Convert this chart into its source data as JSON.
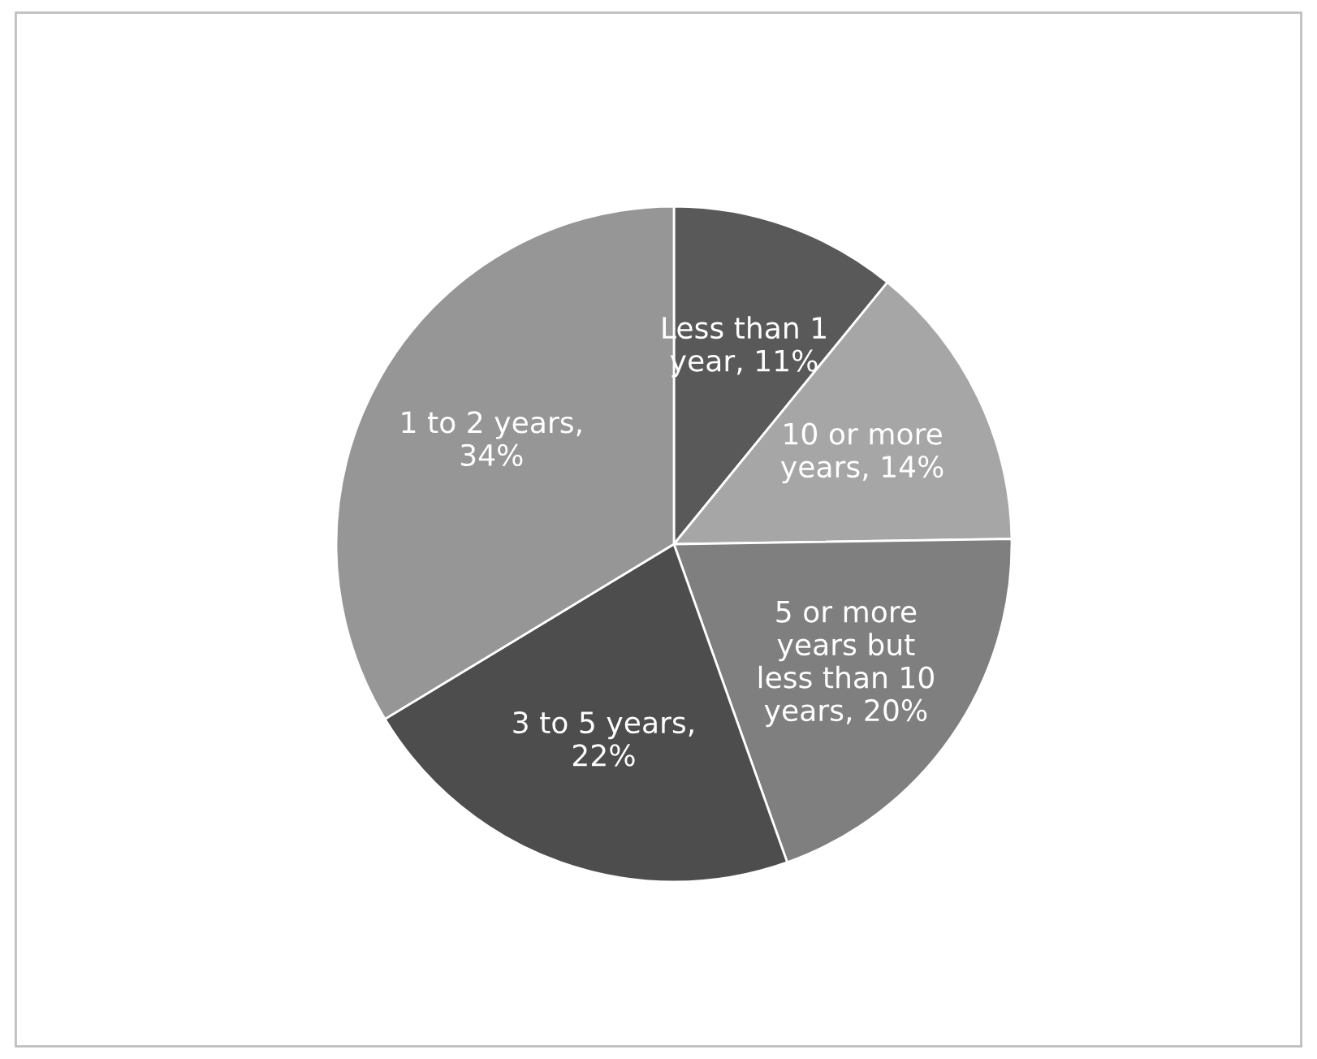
{
  "chart_data": {
    "type": "pie",
    "categories": [
      "Less than 1\nyear, 11%",
      "10 or more\nyears, 14%",
      "5 or more\nyears but\nless than 10\nyears, 20%",
      "3 to 5 years,\n22%",
      "1 to 2 years,\n34%"
    ],
    "values": [
      11,
      14,
      20,
      22,
      34
    ],
    "colors": [
      "#595959",
      "#a6a6a6",
      "#7f7f7f",
      "#4d4d4d",
      "#969696"
    ]
  }
}
